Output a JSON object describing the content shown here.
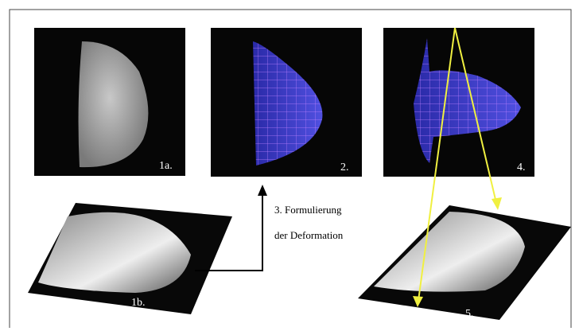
{
  "panels": {
    "p1a": {
      "label": "1a."
    },
    "p2": {
      "label": "2."
    },
    "p4": {
      "label": "4."
    },
    "p1b": {
      "label": "1b."
    },
    "p5": {
      "label": "5."
    }
  },
  "step3": {
    "lines": [
      "3. Formulierung",
      "der Deformation"
    ]
  }
}
